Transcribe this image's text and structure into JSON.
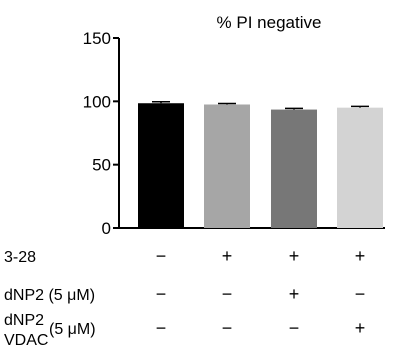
{
  "chart_data": {
    "type": "bar",
    "title": "% PI negative",
    "ylim": [
      0,
      150
    ],
    "yticks": [
      0,
      50,
      100,
      150
    ],
    "grid": false,
    "bars": [
      {
        "value": 98.5,
        "error": 1.2,
        "color": "#000000"
      },
      {
        "value": 97.5,
        "error": 0.8,
        "color": "#a6a6a6"
      },
      {
        "value": 93.5,
        "error": 0.9,
        "color": "#777777"
      },
      {
        "value": 95.0,
        "error": 1.0,
        "color": "#d3d3d3"
      }
    ],
    "conditions": [
      {
        "label": "3-28",
        "values": [
          "−",
          "+",
          "+",
          "+"
        ]
      },
      {
        "label": "dNP2 (5 μM)",
        "values": [
          "−",
          "−",
          "+",
          "−"
        ]
      },
      {
        "label_line1": "dNP2",
        "label_line2": "VDAC",
        "label_suffix": "(5 μM)",
        "values": [
          "−",
          "−",
          "−",
          "+"
        ]
      }
    ]
  }
}
